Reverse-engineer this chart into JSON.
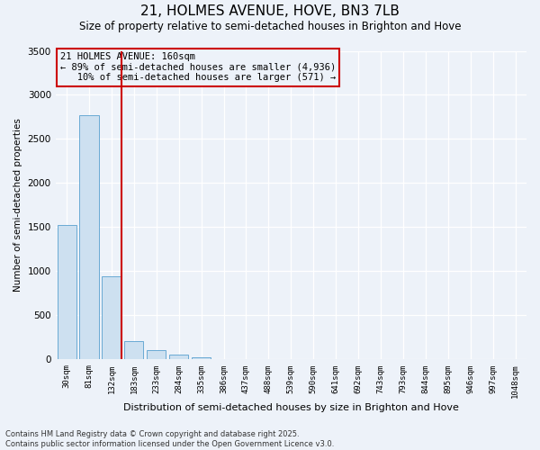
{
  "title": "21, HOLMES AVENUE, HOVE, BN3 7LB",
  "subtitle": "Size of property relative to semi-detached houses in Brighton and Hove",
  "xlabel": "Distribution of semi-detached houses by size in Brighton and Hove",
  "ylabel": "Number of semi-detached properties",
  "categories": [
    "30sqm",
    "81sqm",
    "132sqm",
    "183sqm",
    "233sqm",
    "284sqm",
    "335sqm",
    "386sqm",
    "437sqm",
    "488sqm",
    "539sqm",
    "590sqm",
    "641sqm",
    "692sqm",
    "743sqm",
    "793sqm",
    "844sqm",
    "895sqm",
    "946sqm",
    "997sqm",
    "1048sqm"
  ],
  "values": [
    1530,
    2770,
    940,
    210,
    110,
    55,
    20,
    3,
    0,
    0,
    0,
    0,
    0,
    0,
    0,
    0,
    0,
    0,
    0,
    0,
    0
  ],
  "bar_color": "#cde0f0",
  "bar_edge_color": "#6aaad4",
  "vline_color": "#cc0000",
  "annotation_text": "21 HOLMES AVENUE: 160sqm\n← 89% of semi-detached houses are smaller (4,936)\n   10% of semi-detached houses are larger (571) →",
  "ylim_max": 3500,
  "bg_color": "#edf2f9",
  "grid_color": "#ffffff",
  "footnote": "Contains HM Land Registry data © Crown copyright and database right 2025.\nContains public sector information licensed under the Open Government Licence v3.0.",
  "title_fontsize": 11,
  "subtitle_fontsize": 8.5,
  "ylabel_fontsize": 7.5,
  "xlabel_fontsize": 8,
  "tick_fontsize": 6.5,
  "annot_fontsize": 7.5,
  "footnote_fontsize": 6
}
